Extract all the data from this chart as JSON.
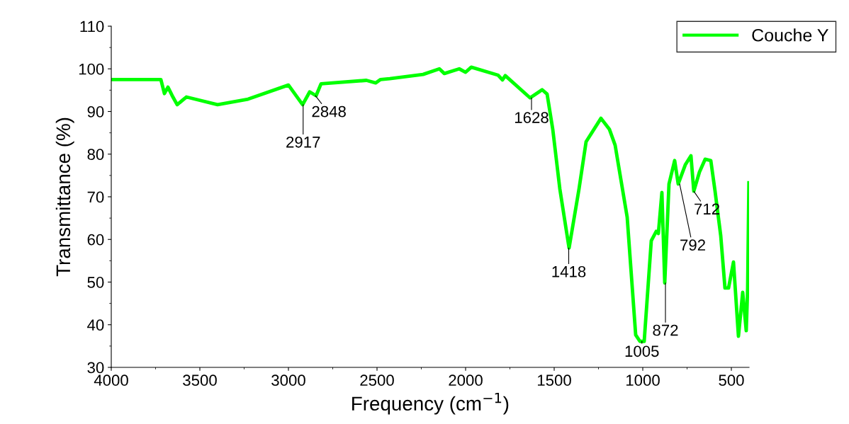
{
  "chart_data": {
    "type": "line",
    "xlabel": "Frequency (cm$^{−1}$)",
    "ylabel": "Transmittance (%)",
    "x": [
      4000,
      3720,
      3700,
      3680,
      3656,
      3628,
      3576,
      3400,
      3228,
      3000,
      2920,
      2880,
      2844,
      2816,
      2560,
      2508,
      2480,
      2428,
      2240,
      2148,
      2120,
      2036,
      2000,
      1968,
      1816,
      1792,
      1776,
      1636,
      1568,
      1540,
      1508,
      1468,
      1416,
      1360,
      1320,
      1236,
      1188,
      1156,
      1088,
      1040,
      1016,
      992,
      952,
      924,
      912,
      892,
      876,
      852,
      820,
      800,
      760,
      728,
      712,
      680,
      648,
      616,
      592,
      560,
      536,
      516,
      488,
      460,
      436,
      416,
      408,
      401
    ],
    "series": [
      {
        "name": "Couche Y",
        "color": "#00ff00",
        "values": [
          97.5,
          97.5,
          94.2,
          95.7,
          93.7,
          91.6,
          93.4,
          91.6,
          92.9,
          96.2,
          91.6,
          94.6,
          93.7,
          96.5,
          97.3,
          96.7,
          97.5,
          97.7,
          98.7,
          100.0,
          98.9,
          100.0,
          99.2,
          100.4,
          98.5,
          97.4,
          98.4,
          93.2,
          95.1,
          94.1,
          85.8,
          71.8,
          58.0,
          71.8,
          82.9,
          88.4,
          85.8,
          82.1,
          65.2,
          37.6,
          36.1,
          36.1,
          59.7,
          61.9,
          61.4,
          71.0,
          49.8,
          73.0,
          78.5,
          73.0,
          77.5,
          79.6,
          71.3,
          75.8,
          78.8,
          78.5,
          71.3,
          60.9,
          48.6,
          48.6,
          54.7,
          37.3,
          47.6,
          38.6,
          48.6,
          73.3
        ]
      }
    ],
    "xlim": [
      4000,
      400
    ],
    "xticks": [
      4000,
      3500,
      3000,
      2500,
      2000,
      1500,
      1000,
      500
    ],
    "ylim": [
      30,
      110
    ],
    "yticks": [
      30,
      40,
      50,
      60,
      70,
      80,
      90,
      100,
      110
    ],
    "annotations": [
      {
        "text": "2917",
        "x": 2917,
        "y": 91.6
      },
      {
        "text": "2848",
        "x": 2848,
        "y": 93.7
      },
      {
        "text": "1628",
        "x": 1628,
        "y": 93.2
      },
      {
        "text": "1418",
        "x": 1418,
        "y": 58.0
      },
      {
        "text": "1005",
        "x": 1005,
        "y": 36.1
      },
      {
        "text": "872",
        "x": 872,
        "y": 49.8
      },
      {
        "text": "792",
        "x": 792,
        "y": 73.0
      },
      {
        "text": "712",
        "x": 712,
        "y": 71.3
      }
    ],
    "legend": "top right",
    "grid": false
  }
}
